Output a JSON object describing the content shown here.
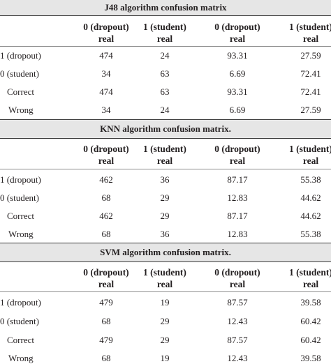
{
  "sections": [
    {
      "title": "J48 algorithm confusion matrix",
      "headers": [
        "0 (dropout)",
        "real",
        "1 (student)",
        "real",
        "0 (dropout)",
        "real",
        "1 (student)",
        "real"
      ],
      "rows": [
        {
          "label": "1 (dropout)",
          "values": [
            "474",
            "24",
            "93.31",
            "27.59"
          ]
        },
        {
          "label": "0 (student)",
          "values": [
            "34",
            "63",
            "6.69",
            "72.41"
          ]
        },
        {
          "label": "Correct",
          "values": [
            "474",
            "63",
            "93.31",
            "72.41"
          ]
        },
        {
          "label": "Wrong",
          "values": [
            "34",
            "24",
            "6.69",
            "27.59"
          ]
        }
      ]
    },
    {
      "title": "KNN algorithm confusion matrix.",
      "headers": [
        "0 (dropout)",
        "real",
        "1 (student)",
        "real",
        "0 (dropout)",
        "real",
        "1 (student)",
        "real"
      ],
      "rows": [
        {
          "label": "1 (dropout)",
          "values": [
            "462",
            "36",
            "87.17",
            "55.38"
          ]
        },
        {
          "label": "0 (student)",
          "values": [
            "68",
            "29",
            "12.83",
            "44.62"
          ]
        },
        {
          "label": "Correct",
          "values": [
            "462",
            "29",
            "87.17",
            "44.62"
          ]
        },
        {
          "label": "Wrong",
          "values": [
            "68",
            "36",
            "12.83",
            "55.38"
          ]
        }
      ]
    },
    {
      "title": "SVM algorithm confusion matrix.",
      "headers": [
        "0 (dropout)",
        "real",
        "1 (student)",
        "real",
        "0 (dropout)",
        "real",
        "1 (student)",
        "real"
      ],
      "rows": [
        {
          "label": "1 (dropout)",
          "values": [
            "479",
            "19",
            "87.57",
            "39.58"
          ]
        },
        {
          "label": "0 (student)",
          "values": [
            "68",
            "29",
            "12.43",
            "60.42"
          ]
        },
        {
          "label": "Correct",
          "values": [
            "479",
            "29",
            "87.57",
            "60.42"
          ]
        },
        {
          "label": "Wrong",
          "values": [
            "68",
            "19",
            "12.43",
            "39.58"
          ]
        }
      ]
    }
  ]
}
